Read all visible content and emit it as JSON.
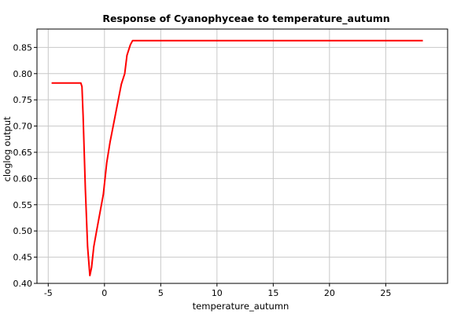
{
  "chart_data": {
    "type": "line",
    "title": "Response of Cyanophyceae to temperature_autumn",
    "xlabel": "temperature_autumn",
    "ylabel": "cloglog output",
    "xlim": [
      -6,
      30.5
    ],
    "ylim": [
      0.4,
      0.885
    ],
    "xticks": [
      -5,
      0,
      5,
      10,
      15,
      20,
      25
    ],
    "xtick_labels": [
      "-5",
      "0",
      "5",
      "10",
      "15",
      "20",
      "25"
    ],
    "yticks": [
      0.4,
      0.45,
      0.5,
      0.55,
      0.6,
      0.65,
      0.7,
      0.75,
      0.8,
      0.85
    ],
    "ytick_labels": [
      "0.40",
      "0.45",
      "0.50",
      "0.55",
      "0.60",
      "0.65",
      "0.70",
      "0.75",
      "0.80",
      "0.85"
    ],
    "grid": true,
    "legend": "none",
    "series": [
      {
        "color": "#ff0000",
        "x": [
          -4.7,
          -2.1,
          -2.0,
          -1.9,
          -1.7,
          -1.5,
          -1.3,
          -1.15,
          -0.95,
          -0.7,
          -0.4,
          -0.1,
          0.2,
          0.5,
          1.0,
          1.5,
          1.8,
          2.0,
          2.3,
          2.5,
          28.3
        ],
        "y": [
          0.782,
          0.782,
          0.775,
          0.72,
          0.58,
          0.47,
          0.415,
          0.43,
          0.47,
          0.5,
          0.535,
          0.57,
          0.63,
          0.67,
          0.725,
          0.78,
          0.8,
          0.835,
          0.855,
          0.863,
          0.863
        ]
      }
    ]
  }
}
